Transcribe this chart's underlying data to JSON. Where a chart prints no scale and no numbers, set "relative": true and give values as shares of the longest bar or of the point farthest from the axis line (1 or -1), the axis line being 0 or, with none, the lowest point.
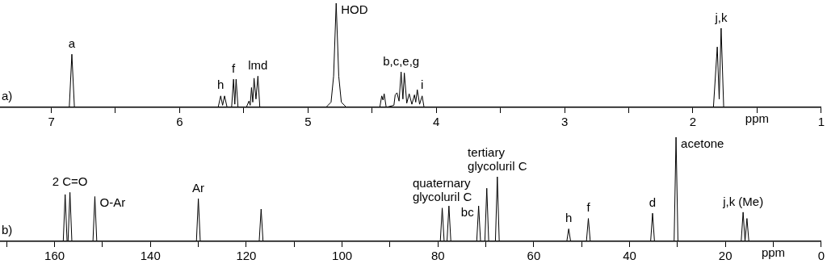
{
  "chart_data": [
    {
      "type": "line",
      "relative": true,
      "xlabel": "ppm",
      "marker": "none",
      "grid": false,
      "legend": false,
      "xlim": [
        7.4,
        1.0
      ],
      "xticks": [
        7,
        {
          "value": 6.5,
          "label": null
        },
        6,
        {
          "value": 5.5,
          "label": null
        },
        5,
        {
          "value": 4.5,
          "label": null
        },
        4,
        {
          "value": 3.5,
          "label": null
        },
        3,
        {
          "value": 2.5,
          "label": null
        },
        2,
        {
          "value": 1.5,
          "label": null
        },
        1
      ],
      "series": [
        {
          "color": "#000000",
          "x": [
            7.4,
            6.86,
            6.84,
            6.82,
            5.7,
            5.68,
            5.665,
            5.65,
            5.63,
            5.595,
            5.58,
            5.57,
            5.56,
            5.545,
            5.48,
            5.46,
            5.45,
            5.44,
            5.43,
            5.42,
            5.405,
            5.39,
            5.375,
            4.86,
            4.82,
            4.8,
            4.78,
            4.76,
            4.74,
            4.7,
            4.44,
            4.425,
            4.415,
            4.406,
            4.39,
            4.33,
            4.32,
            4.306,
            4.29,
            4.274,
            4.26,
            4.249,
            4.23,
            4.211,
            4.19,
            4.17,
            4.16,
            4.148,
            4.13,
            4.11,
            4.095,
            1.84,
            1.81,
            1.795,
            1.78,
            1.76,
            1.0
          ],
          "values": [
            0,
            0,
            0.51,
            0,
            0,
            0.11,
            0.02,
            0.11,
            0,
            0,
            0.27,
            0.03,
            0.27,
            0,
            0,
            0.06,
            0.02,
            0.19,
            0.05,
            0.28,
            0.08,
            0.3,
            0,
            0,
            0.05,
            0.3,
            1,
            0.3,
            0.05,
            0,
            0,
            0.11,
            0.07,
            0.13,
            0,
            0.02,
            0.12,
            0.14,
            0.06,
            0.34,
            0.08,
            0.33,
            0.04,
            0.13,
            0.03,
            0.12,
            0.05,
            0.17,
            0.03,
            0.11,
            0,
            0,
            0.58,
            0.08,
            0.76,
            0,
            0
          ]
        }
      ],
      "annotations": [
        "a)",
        {
          "text": "a",
          "x": 6.84,
          "y": 0.51
        },
        {
          "text": "h",
          "x": 5.68,
          "y": 0.11
        },
        {
          "text": "f",
          "x": 5.58,
          "y": 0.27
        },
        {
          "text": "lmd",
          "x": 5.39,
          "y": 0.3
        },
        {
          "text": "HOD",
          "x": 4.78,
          "y": 1
        },
        {
          "text": "b,c,e,g",
          "x": 4.274,
          "y": 0.34
        },
        {
          "text": "i",
          "x": 4.11,
          "y": 0.11
        },
        {
          "text": "j,k",
          "x": 1.78,
          "y": 0.76
        }
      ]
    },
    {
      "type": "line",
      "relative": true,
      "xlabel": "ppm",
      "marker": "none",
      "grid": false,
      "legend": false,
      "xlim": [
        171.4,
        0
      ],
      "xticks": [
        {
          "value": 170,
          "label": null
        },
        160,
        {
          "value": 150,
          "label": null
        },
        140,
        {
          "value": 130,
          "label": null
        },
        120,
        {
          "value": 110,
          "label": null
        },
        100,
        {
          "value": 90,
          "label": null
        },
        80,
        {
          "value": 70,
          "label": null
        },
        60,
        {
          "value": 50,
          "label": null
        },
        40,
        {
          "value": 30,
          "label": null
        },
        20,
        {
          "value": 10,
          "label": null
        },
        0
      ],
      "series": [
        {
          "color": "#000000",
          "x": [
            171.4,
            158.2,
            157.8,
            157.4,
            157.2,
            156.8,
            156.4,
            152,
            151.6,
            151.2,
            130.4,
            130,
            129.6,
            117.3,
            116.9,
            116.5,
            79.5,
            79.1,
            78.7,
            78.1,
            77.7,
            77.3,
            71.9,
            71.5,
            71.1,
            70.2,
            69.8,
            69.4,
            68,
            67.6,
            67.2,
            53.1,
            52.7,
            52.3,
            49,
            48.6,
            48.2,
            35.6,
            35.2,
            34.8,
            30.7,
            30.3,
            29.9,
            16.7,
            16.3,
            15.9,
            15.5,
            15.1,
            0
          ],
          "values": [
            0,
            0,
            0.45,
            0,
            0,
            0.47,
            0,
            0,
            0.43,
            0,
            0,
            0.41,
            0,
            0,
            0.31,
            0,
            0,
            0.32,
            0,
            0,
            0.34,
            0,
            0,
            0.34,
            0,
            0,
            0.51,
            0,
            0,
            0.62,
            0,
            0,
            0.12,
            0,
            0,
            0.22,
            0,
            0,
            0.27,
            0,
            0,
            1,
            0,
            0,
            0.28,
            0,
            0.22,
            0,
            0
          ]
        }
      ],
      "annotations": [
        "b)",
        {
          "text": "2 C=O",
          "x": 156.8,
          "y": 0.47
        },
        {
          "text": "O-Ar",
          "x": 151.6,
          "y": 0.43
        },
        {
          "text": "Ar",
          "x": 130,
          "y": 0.41
        },
        {
          "text": "bc",
          "x": 71.5,
          "y": 0.34
        },
        {
          "text": "quaternary\nglycoluril C",
          "x": 79.1,
          "y": 0.32
        },
        {
          "text": "tertiary\nglycoluril C",
          "x": 67.6,
          "y": 0.62
        },
        {
          "text": "h",
          "x": 52.7,
          "y": 0.12
        },
        {
          "text": "f",
          "x": 48.6,
          "y": 0.22
        },
        {
          "text": "d",
          "x": 35.2,
          "y": 0.27
        },
        {
          "text": "acetone",
          "x": 30.3,
          "y": 1
        },
        {
          "text": "j,k (Me)",
          "x": 16.3,
          "y": 0.28
        }
      ]
    }
  ]
}
